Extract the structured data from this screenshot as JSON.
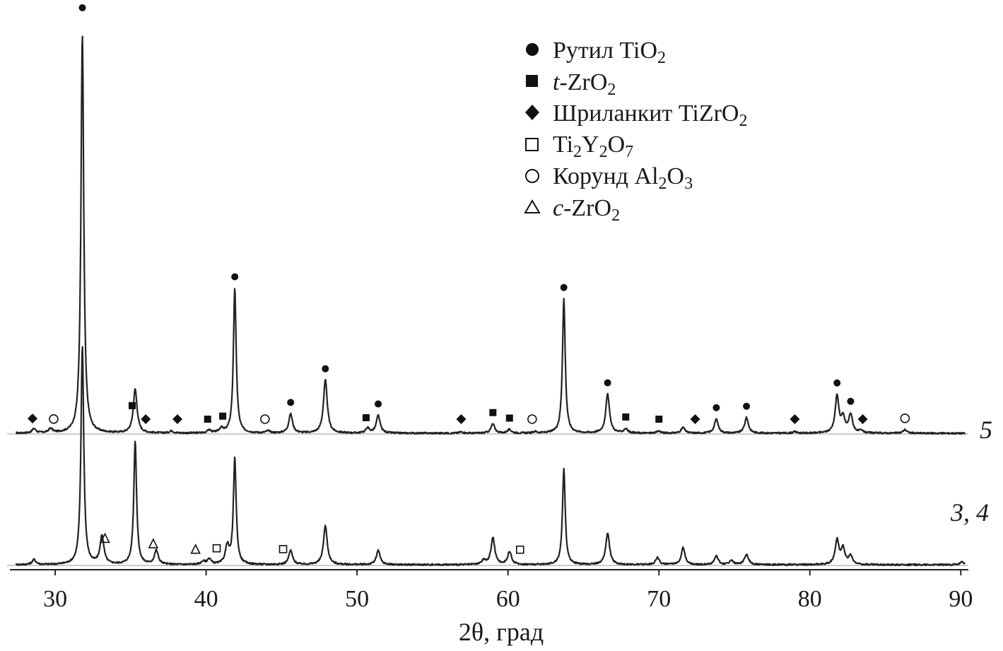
{
  "chart_data": {
    "type": "line",
    "title": "",
    "xlabel": "2θ, град",
    "ylabel": "",
    "xlim": [
      27,
      90.5
    ],
    "xticks": [
      30,
      40,
      50,
      60,
      70,
      80,
      90
    ],
    "grid": false,
    "legend_position": "top-right",
    "legend": [
      {
        "marker": "filled-circle",
        "text": "Рутил TiO",
        "sub": "2",
        "tail": ""
      },
      {
        "marker": "filled-square",
        "text": "t-ZrO",
        "sub": "2",
        "tail": ""
      },
      {
        "marker": "filled-diamond",
        "text": "Шриланкит TiZrO",
        "sub": "2",
        "tail": ""
      },
      {
        "marker": "open-square",
        "text": "Ti",
        "sub": "2",
        "mid": "Y",
        "sub2": "2",
        "mid2": "O",
        "sub3": "7"
      },
      {
        "marker": "open-circle",
        "text": "Корунд Al",
        "sub": "2",
        "mid": "O",
        "sub2": "3"
      },
      {
        "marker": "open-triangle",
        "text": "c-ZrO",
        "sub": "2",
        "tail": ""
      }
    ],
    "series": [
      {
        "name": "5",
        "label": "5",
        "peaks": [
          [
            28.6,
            6
          ],
          [
            29.7,
            6
          ],
          [
            31.8,
            565
          ],
          [
            35.3,
            62
          ],
          [
            37.7,
            3
          ],
          [
            40.2,
            4
          ],
          [
            41.0,
            6
          ],
          [
            41.9,
            205
          ],
          [
            44.1,
            3
          ],
          [
            45.6,
            27
          ],
          [
            47.9,
            75
          ],
          [
            50.7,
            7
          ],
          [
            51.4,
            25
          ],
          [
            56.9,
            2
          ],
          [
            59.0,
            13
          ],
          [
            60.1,
            5
          ],
          [
            61.8,
            2
          ],
          [
            63.7,
            190
          ],
          [
            66.6,
            55
          ],
          [
            67.8,
            6
          ],
          [
            70.0,
            3
          ],
          [
            71.6,
            8
          ],
          [
            73.8,
            20
          ],
          [
            75.8,
            22
          ],
          [
            79.0,
            2
          ],
          [
            81.8,
            52
          ],
          [
            82.2,
            20
          ],
          [
            82.7,
            26
          ],
          [
            83.4,
            3
          ],
          [
            86.3,
            5
          ]
        ],
        "markers": [
          {
            "type": "filled-circle",
            "x": 31.8
          },
          {
            "type": "filled-circle",
            "x": 41.9
          },
          {
            "type": "filled-circle",
            "x": 45.6
          },
          {
            "type": "filled-circle",
            "x": 47.9
          },
          {
            "type": "filled-circle",
            "x": 51.4
          },
          {
            "type": "filled-circle",
            "x": 63.7
          },
          {
            "type": "filled-circle",
            "x": 66.6
          },
          {
            "type": "filled-circle",
            "x": 73.8
          },
          {
            "type": "filled-circle",
            "x": 75.8
          },
          {
            "type": "filled-circle",
            "x": 81.8
          },
          {
            "type": "filled-circle",
            "x": 82.7
          },
          {
            "type": "filled-square",
            "x": 35.1
          },
          {
            "type": "filled-square",
            "x": 40.1
          },
          {
            "type": "filled-square",
            "x": 41.1
          },
          {
            "type": "filled-square",
            "x": 50.6
          },
          {
            "type": "filled-square",
            "x": 59.0
          },
          {
            "type": "filled-square",
            "x": 60.1
          },
          {
            "type": "filled-square",
            "x": 67.8
          },
          {
            "type": "filled-square",
            "x": 70.0
          },
          {
            "type": "filled-diamond",
            "x": 28.5
          },
          {
            "type": "filled-diamond",
            "x": 36.0
          },
          {
            "type": "filled-diamond",
            "x": 38.1
          },
          {
            "type": "filled-diamond",
            "x": 56.9
          },
          {
            "type": "filled-diamond",
            "x": 72.4
          },
          {
            "type": "filled-diamond",
            "x": 79.0
          },
          {
            "type": "filled-diamond",
            "x": 83.5
          },
          {
            "type": "open-circle",
            "x": 29.9
          },
          {
            "type": "open-circle",
            "x": 43.9
          },
          {
            "type": "open-circle",
            "x": 61.6
          },
          {
            "type": "open-circle",
            "x": 86.3
          }
        ]
      },
      {
        "name": "3, 4",
        "label": "3, 4",
        "peaks": [
          [
            28.6,
            7
          ],
          [
            31.8,
            310
          ],
          [
            33.1,
            40
          ],
          [
            35.3,
            175
          ],
          [
            36.7,
            20
          ],
          [
            39.8,
            4
          ],
          [
            40.2,
            8
          ],
          [
            41.4,
            25
          ],
          [
            41.9,
            150
          ],
          [
            45.6,
            20
          ],
          [
            47.9,
            55
          ],
          [
            51.4,
            20
          ],
          [
            58.4,
            6
          ],
          [
            59.0,
            38
          ],
          [
            60.1,
            18
          ],
          [
            63.7,
            135
          ],
          [
            66.6,
            45
          ],
          [
            69.9,
            10
          ],
          [
            71.6,
            24
          ],
          [
            73.8,
            12
          ],
          [
            74.8,
            6
          ],
          [
            75.8,
            15
          ],
          [
            81.8,
            35
          ],
          [
            82.2,
            22
          ],
          [
            82.7,
            12
          ],
          [
            90.1,
            4
          ]
        ],
        "markers": [
          {
            "type": "open-triangle",
            "x": 33.3
          },
          {
            "type": "open-triangle",
            "x": 36.5
          },
          {
            "type": "open-triangle",
            "x": 39.3
          },
          {
            "type": "open-square",
            "x": 40.7
          },
          {
            "type": "open-square",
            "x": 45.1
          },
          {
            "type": "open-square",
            "x": 60.8
          }
        ]
      }
    ]
  }
}
